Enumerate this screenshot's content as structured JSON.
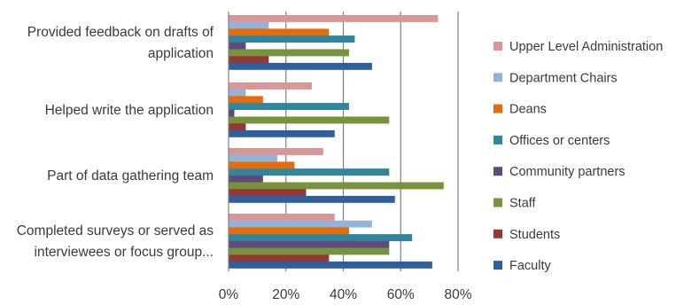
{
  "chart_data": {
    "type": "bar",
    "orientation": "horizontal",
    "categories": [
      [
        "Provided feedback on drafts of",
        "application"
      ],
      [
        "Helped write the application"
      ],
      [
        "Part of data gathering team"
      ],
      [
        "Completed surveys or served as",
        "interviewees or focus group..."
      ]
    ],
    "series": [
      {
        "name": "Upper Level Administration",
        "color": "#d99694",
        "values": [
          73,
          29,
          33,
          37
        ]
      },
      {
        "name": "Department Chairs",
        "color": "#95b3d7",
        "values": [
          14,
          6,
          17,
          50
        ]
      },
      {
        "name": "Deans",
        "color": "#e46c0a",
        "values": [
          35,
          12,
          23,
          42
        ]
      },
      {
        "name": "Offices or centers",
        "color": "#31859c",
        "values": [
          44,
          42,
          56,
          64
        ]
      },
      {
        "name": "Community partners",
        "color": "#604a7b",
        "values": [
          6,
          2,
          12,
          56
        ]
      },
      {
        "name": "Staff",
        "color": "#77933c",
        "values": [
          42,
          56,
          75,
          56
        ]
      },
      {
        "name": "Students",
        "color": "#953735",
        "values": [
          14,
          6,
          27,
          35
        ]
      },
      {
        "name": "Faculty",
        "color": "#2e5f9e",
        "values": [
          50,
          37,
          58,
          71
        ]
      }
    ],
    "xlim": [
      0,
      80
    ],
    "x_ticks": [
      "0%",
      "20%",
      "40%",
      "60%",
      "80%"
    ],
    "grid": true,
    "legend_position": "right"
  }
}
